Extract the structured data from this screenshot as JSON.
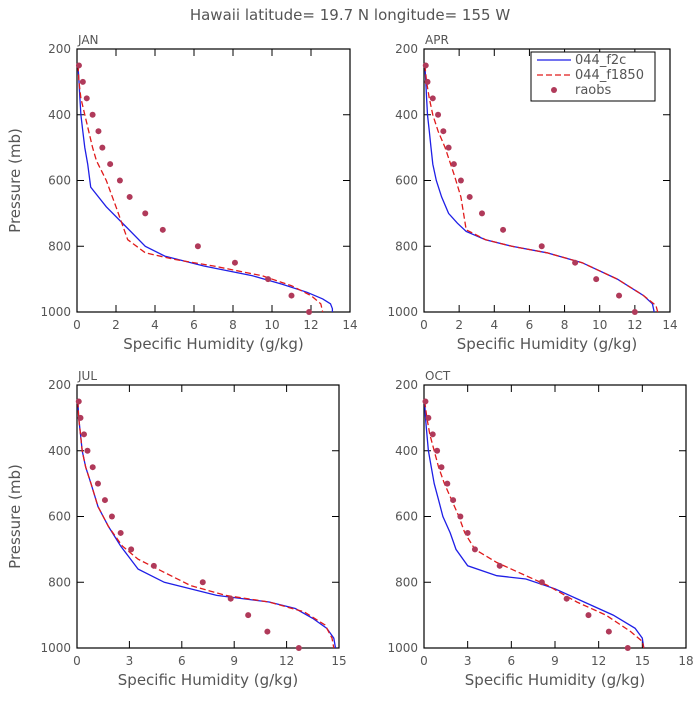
{
  "title": "Hawaii  latitude= 19.7 N longitude= 155 W",
  "colors": {
    "f2c": "#1f1fe6",
    "f1850": "#e01b1b",
    "raobs": "#b03a5a",
    "axis": "#000000",
    "text": "#555555"
  },
  "chart_data": [
    {
      "type": "line",
      "panel": "JAN",
      "xlabel": "Specific Humidity (g/kg)",
      "ylabel": "Pressure (mb)",
      "xlim": [
        0,
        14
      ],
      "ylim": [
        1000,
        200
      ],
      "xticks": [
        0,
        2,
        4,
        6,
        8,
        10,
        12,
        14
      ],
      "yticks": [
        200,
        400,
        600,
        800,
        1000
      ],
      "series": [
        {
          "name": "044_f2c",
          "style": "solid",
          "x": [
            0.05,
            0.1,
            0.15,
            0.2,
            0.3,
            0.4,
            0.55,
            0.7,
            1.5,
            2.5,
            3.5,
            4.5,
            6.5,
            9,
            10.5,
            11.8,
            12.6,
            13.0,
            13.1,
            13.1
          ],
          "y": [
            250,
            300,
            350,
            400,
            450,
            500,
            550,
            620,
            680,
            740,
            800,
            830,
            860,
            890,
            915,
            940,
            960,
            975,
            990,
            1000
          ]
        },
        {
          "name": "044_f1850",
          "style": "dashed",
          "x": [
            0.05,
            0.1,
            0.2,
            0.4,
            0.6,
            0.8,
            1.0,
            1.5,
            2.0,
            2.6,
            3.5,
            5,
            7,
            9.5,
            11,
            12,
            12.5,
            12.6
          ],
          "y": [
            250,
            300,
            350,
            400,
            450,
            500,
            540,
            600,
            680,
            780,
            820,
            840,
            860,
            890,
            920,
            950,
            975,
            1000
          ]
        },
        {
          "name": "raobs",
          "style": "markers",
          "x": [
            0.1,
            0.3,
            0.5,
            0.8,
            1.1,
            1.3,
            1.7,
            2.2,
            2.7,
            3.5,
            4.4,
            6.2,
            8.1,
            9.8,
            11.0,
            11.9
          ],
          "y": [
            250,
            300,
            350,
            400,
            450,
            500,
            550,
            600,
            650,
            700,
            750,
            800,
            850,
            900,
            950,
            1000
          ]
        }
      ]
    },
    {
      "type": "line",
      "panel": "APR",
      "xlabel": "Specific Humidity (g/kg)",
      "ylabel": "",
      "xlim": [
        0,
        14
      ],
      "ylim": [
        1000,
        200
      ],
      "xticks": [
        0,
        2,
        4,
        6,
        8,
        10,
        12,
        14
      ],
      "yticks": [
        200,
        400,
        600,
        800,
        1000
      ],
      "series": [
        {
          "name": "044_f2c",
          "style": "solid",
          "x": [
            0.05,
            0.1,
            0.15,
            0.2,
            0.3,
            0.4,
            0.5,
            0.7,
            1.0,
            1.4,
            1.9,
            2.4,
            3.5,
            5,
            7,
            9,
            11,
            12.5,
            13.0,
            13.1
          ],
          "y": [
            250,
            300,
            350,
            400,
            450,
            500,
            550,
            600,
            650,
            700,
            730,
            755,
            780,
            800,
            820,
            850,
            900,
            950,
            975,
            1000
          ]
        },
        {
          "name": "044_f1850",
          "style": "dashed",
          "x": [
            0.05,
            0.15,
            0.3,
            0.5,
            0.8,
            1.2,
            1.7,
            2.1,
            2.4,
            3.5,
            5,
            7,
            9,
            11,
            12.5,
            13.2,
            13.3
          ],
          "y": [
            250,
            300,
            350,
            400,
            450,
            500,
            580,
            650,
            750,
            780,
            800,
            820,
            850,
            900,
            950,
            980,
            1000
          ]
        },
        {
          "name": "raobs",
          "style": "markers",
          "x": [
            0.1,
            0.2,
            0.5,
            0.8,
            1.1,
            1.4,
            1.7,
            2.1,
            2.6,
            3.3,
            4.5,
            6.7,
            8.6,
            9.8,
            11.1,
            12.0
          ],
          "y": [
            250,
            300,
            350,
            400,
            450,
            500,
            550,
            600,
            650,
            700,
            750,
            800,
            850,
            900,
            950,
            1000
          ]
        }
      ]
    },
    {
      "type": "line",
      "panel": "JUL",
      "xlabel": "Specific Humidity (g/kg)",
      "ylabel": "Pressure (mb)",
      "xlim": [
        0,
        15
      ],
      "ylim": [
        1000,
        200
      ],
      "xticks": [
        0,
        3,
        6,
        9,
        12,
        15
      ],
      "yticks": [
        200,
        400,
        600,
        800,
        1000
      ],
      "series": [
        {
          "name": "044_f2c",
          "style": "solid",
          "x": [
            0.05,
            0.1,
            0.2,
            0.3,
            0.5,
            0.8,
            1.2,
            1.8,
            2.5,
            3.5,
            5,
            8,
            11,
            12.5,
            13.5,
            14.3,
            14.7,
            14.8
          ],
          "y": [
            250,
            300,
            350,
            400,
            450,
            500,
            570,
            630,
            690,
            760,
            800,
            840,
            860,
            880,
            910,
            940,
            970,
            1000
          ]
        },
        {
          "name": "044_f1850",
          "style": "dashed",
          "x": [
            0.05,
            0.1,
            0.2,
            0.3,
            0.5,
            0.8,
            1.2,
            1.8,
            2.6,
            3.5,
            5,
            6.5,
            8.5,
            11,
            13,
            14.2,
            14.6,
            14.7
          ],
          "y": [
            250,
            300,
            350,
            400,
            450,
            500,
            570,
            630,
            690,
            730,
            770,
            810,
            840,
            860,
            890,
            930,
            970,
            1000
          ]
        },
        {
          "name": "raobs",
          "style": "markers",
          "x": [
            0.1,
            0.2,
            0.4,
            0.6,
            0.9,
            1.2,
            1.6,
            2.0,
            2.5,
            3.1,
            4.4,
            7.2,
            8.8,
            9.8,
            10.9,
            12.7
          ],
          "y": [
            250,
            300,
            350,
            400,
            450,
            500,
            550,
            600,
            650,
            700,
            750,
            800,
            850,
            900,
            950,
            1000
          ]
        }
      ]
    },
    {
      "type": "line",
      "panel": "OCT",
      "xlabel": "Specific Humidity (g/kg)",
      "ylabel": "",
      "xlim": [
        0,
        18
      ],
      "ylim": [
        1000,
        200
      ],
      "xticks": [
        0,
        3,
        6,
        9,
        12,
        15,
        18
      ],
      "yticks": [
        200,
        400,
        600,
        800,
        1000
      ],
      "series": [
        {
          "name": "044_f2c",
          "style": "solid",
          "x": [
            0.05,
            0.1,
            0.2,
            0.3,
            0.5,
            0.7,
            1.0,
            1.3,
            1.8,
            2.2,
            3.0,
            5,
            7,
            9,
            11,
            13,
            14.5,
            15.0,
            15.1
          ],
          "y": [
            250,
            300,
            350,
            400,
            450,
            500,
            550,
            600,
            650,
            700,
            750,
            780,
            790,
            820,
            860,
            900,
            940,
            970,
            1000
          ]
        },
        {
          "name": "044_f1850",
          "style": "dashed",
          "x": [
            0.05,
            0.2,
            0.4,
            0.7,
            1.0,
            1.4,
            1.9,
            2.4,
            2.8,
            3.5,
            5,
            6.5,
            8.5,
            10.5,
            12.5,
            14.2,
            15.0,
            15.1
          ],
          "y": [
            250,
            300,
            350,
            400,
            450,
            500,
            550,
            600,
            650,
            700,
            740,
            770,
            810,
            860,
            900,
            950,
            980,
            1000
          ]
        },
        {
          "name": "raobs",
          "style": "markers",
          "x": [
            0.1,
            0.3,
            0.6,
            0.9,
            1.2,
            1.6,
            2.0,
            2.5,
            3.0,
            3.5,
            5.2,
            8.1,
            9.8,
            11.3,
            12.7,
            14.0
          ],
          "y": [
            250,
            300,
            350,
            400,
            450,
            500,
            550,
            600,
            650,
            700,
            750,
            800,
            850,
            900,
            950,
            1000
          ]
        }
      ]
    }
  ]
}
